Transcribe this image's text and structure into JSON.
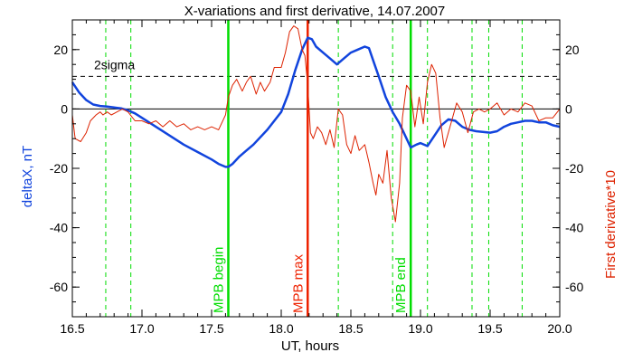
{
  "chart_data": {
    "type": "line",
    "title": "X-variations and first derivative, 14.07.2007",
    "xlabel": "UT, hours",
    "ylabel_left": "deltaX, nT",
    "ylabel_right": "First derivative*10",
    "xlim": [
      16.5,
      20.0
    ],
    "ylim": [
      -70,
      30
    ],
    "xticks": [
      16.5,
      17.0,
      17.5,
      18.0,
      18.5,
      19.0,
      19.5,
      20.0
    ],
    "xtick_labels": [
      "16.5",
      "17.0",
      "17.5",
      "18.0",
      "18.5",
      "19.0",
      "19.5",
      "20.0"
    ],
    "yticks": [
      20,
      0,
      -20,
      -40,
      -60
    ],
    "ytick_labels": [
      "20",
      "0",
      "-20",
      "-40",
      "-60"
    ],
    "threshold": {
      "label": "2sigma",
      "value": 11
    },
    "zero_line": 0,
    "markers": [
      {
        "label": "MPB begin",
        "x": 17.62,
        "color": "#00dd00"
      },
      {
        "label": "MPB max",
        "x": 18.19,
        "color": "#ee2200"
      },
      {
        "label": "MPB end",
        "x": 18.93,
        "color": "#00dd00"
      }
    ],
    "dashed_markers": [
      16.74,
      16.92,
      17.62,
      18.41,
      18.8,
      18.93,
      19.05,
      19.37,
      19.49,
      19.73
    ],
    "colors": {
      "deltaX": "#1144dd",
      "derivative": "#dd2200",
      "green": "#00dd00",
      "axis": "#000000"
    },
    "series": [
      {
        "name": "deltaX",
        "axis": "left",
        "x": [
          16.5,
          16.55,
          16.6,
          16.65,
          16.7,
          16.75,
          16.8,
          16.85,
          16.9,
          16.95,
          17.0,
          17.1,
          17.2,
          17.3,
          17.4,
          17.5,
          17.55,
          17.6,
          17.62,
          17.65,
          17.7,
          17.75,
          17.8,
          17.9,
          18.0,
          18.05,
          18.1,
          18.15,
          18.19,
          18.22,
          18.25,
          18.3,
          18.35,
          18.4,
          18.45,
          18.5,
          18.55,
          18.6,
          18.63,
          18.67,
          18.7,
          18.75,
          18.8,
          18.85,
          18.9,
          18.93,
          18.97,
          19.0,
          19.05,
          19.1,
          19.15,
          19.2,
          19.25,
          19.3,
          19.35,
          19.4,
          19.5,
          19.55,
          19.6,
          19.65,
          19.7,
          19.75,
          19.8,
          19.85,
          19.9,
          19.95,
          20.0
        ],
        "y": [
          9,
          5.5,
          3,
          1.5,
          1,
          0.8,
          0.5,
          0.2,
          -0.5,
          -1.5,
          -3,
          -6,
          -9,
          -12,
          -14.5,
          -17,
          -18.5,
          -19.5,
          -19.5,
          -18.5,
          -16,
          -14,
          -12,
          -7,
          -1,
          5,
          13,
          20,
          24,
          23.5,
          21,
          19,
          17,
          15,
          17,
          19,
          20,
          21,
          20.5,
          15,
          11,
          4,
          -1,
          -5,
          -10,
          -13,
          -12,
          -11.5,
          -12.5,
          -9,
          -5.5,
          -3.5,
          -4,
          -6,
          -7,
          -7.5,
          -8,
          -7.5,
          -6,
          -5,
          -4.5,
          -4,
          -4,
          -4.5,
          -4.5,
          -5.5,
          -6
        ]
      },
      {
        "name": "First derivative*10",
        "axis": "right",
        "x": [
          16.5,
          16.52,
          16.56,
          16.6,
          16.63,
          16.67,
          16.7,
          16.72,
          16.75,
          16.78,
          16.82,
          16.86,
          16.9,
          16.95,
          17.0,
          17.05,
          17.1,
          17.15,
          17.2,
          17.25,
          17.3,
          17.35,
          17.4,
          17.45,
          17.5,
          17.55,
          17.6,
          17.62,
          17.65,
          17.68,
          17.72,
          17.75,
          17.78,
          17.82,
          17.85,
          17.88,
          17.92,
          17.95,
          18.0,
          18.03,
          18.06,
          18.09,
          18.12,
          18.15,
          18.17,
          18.19,
          18.21,
          18.23,
          18.26,
          18.29,
          18.32,
          18.35,
          18.38,
          18.41,
          18.44,
          18.47,
          18.5,
          18.53,
          18.56,
          18.6,
          18.63,
          18.66,
          18.68,
          18.7,
          18.73,
          18.76,
          18.79,
          18.82,
          18.85,
          18.87,
          18.9,
          18.93,
          18.96,
          18.99,
          19.02,
          19.05,
          19.08,
          19.11,
          19.14,
          19.17,
          19.2,
          19.23,
          19.26,
          19.3,
          19.34,
          19.38,
          19.42,
          19.46,
          19.5,
          19.55,
          19.6,
          19.65,
          19.7,
          19.75,
          19.8,
          19.85,
          19.9,
          19.95,
          20.0
        ],
        "y": [
          -2,
          -10,
          -11,
          -8,
          -4,
          -2,
          -1,
          -2,
          -1,
          -2,
          -1,
          0,
          -1,
          -4,
          -4,
          -5,
          -4,
          -6,
          -4,
          -6,
          -5,
          -7,
          -6,
          -7,
          -6,
          -7,
          -2,
          4,
          8,
          10,
          6,
          9,
          11,
          5,
          9,
          6,
          9,
          14,
          14,
          19,
          26,
          28,
          27,
          20,
          18,
          8,
          -8,
          -10,
          -6,
          -8,
          -12,
          -7,
          -13,
          0,
          -2,
          -12,
          -15,
          -9,
          -14,
          -12,
          -18,
          -25,
          -29,
          -22,
          -25,
          -14,
          -30,
          -38,
          -25,
          -3,
          8,
          6,
          -6,
          4,
          -5,
          9,
          15,
          12,
          -3,
          -13,
          -8,
          -3,
          2,
          -1,
          -8,
          -1,
          0,
          -1,
          0,
          2,
          -2,
          0,
          -1,
          2,
          1,
          -4,
          -3,
          -3,
          0
        ]
      }
    ]
  }
}
